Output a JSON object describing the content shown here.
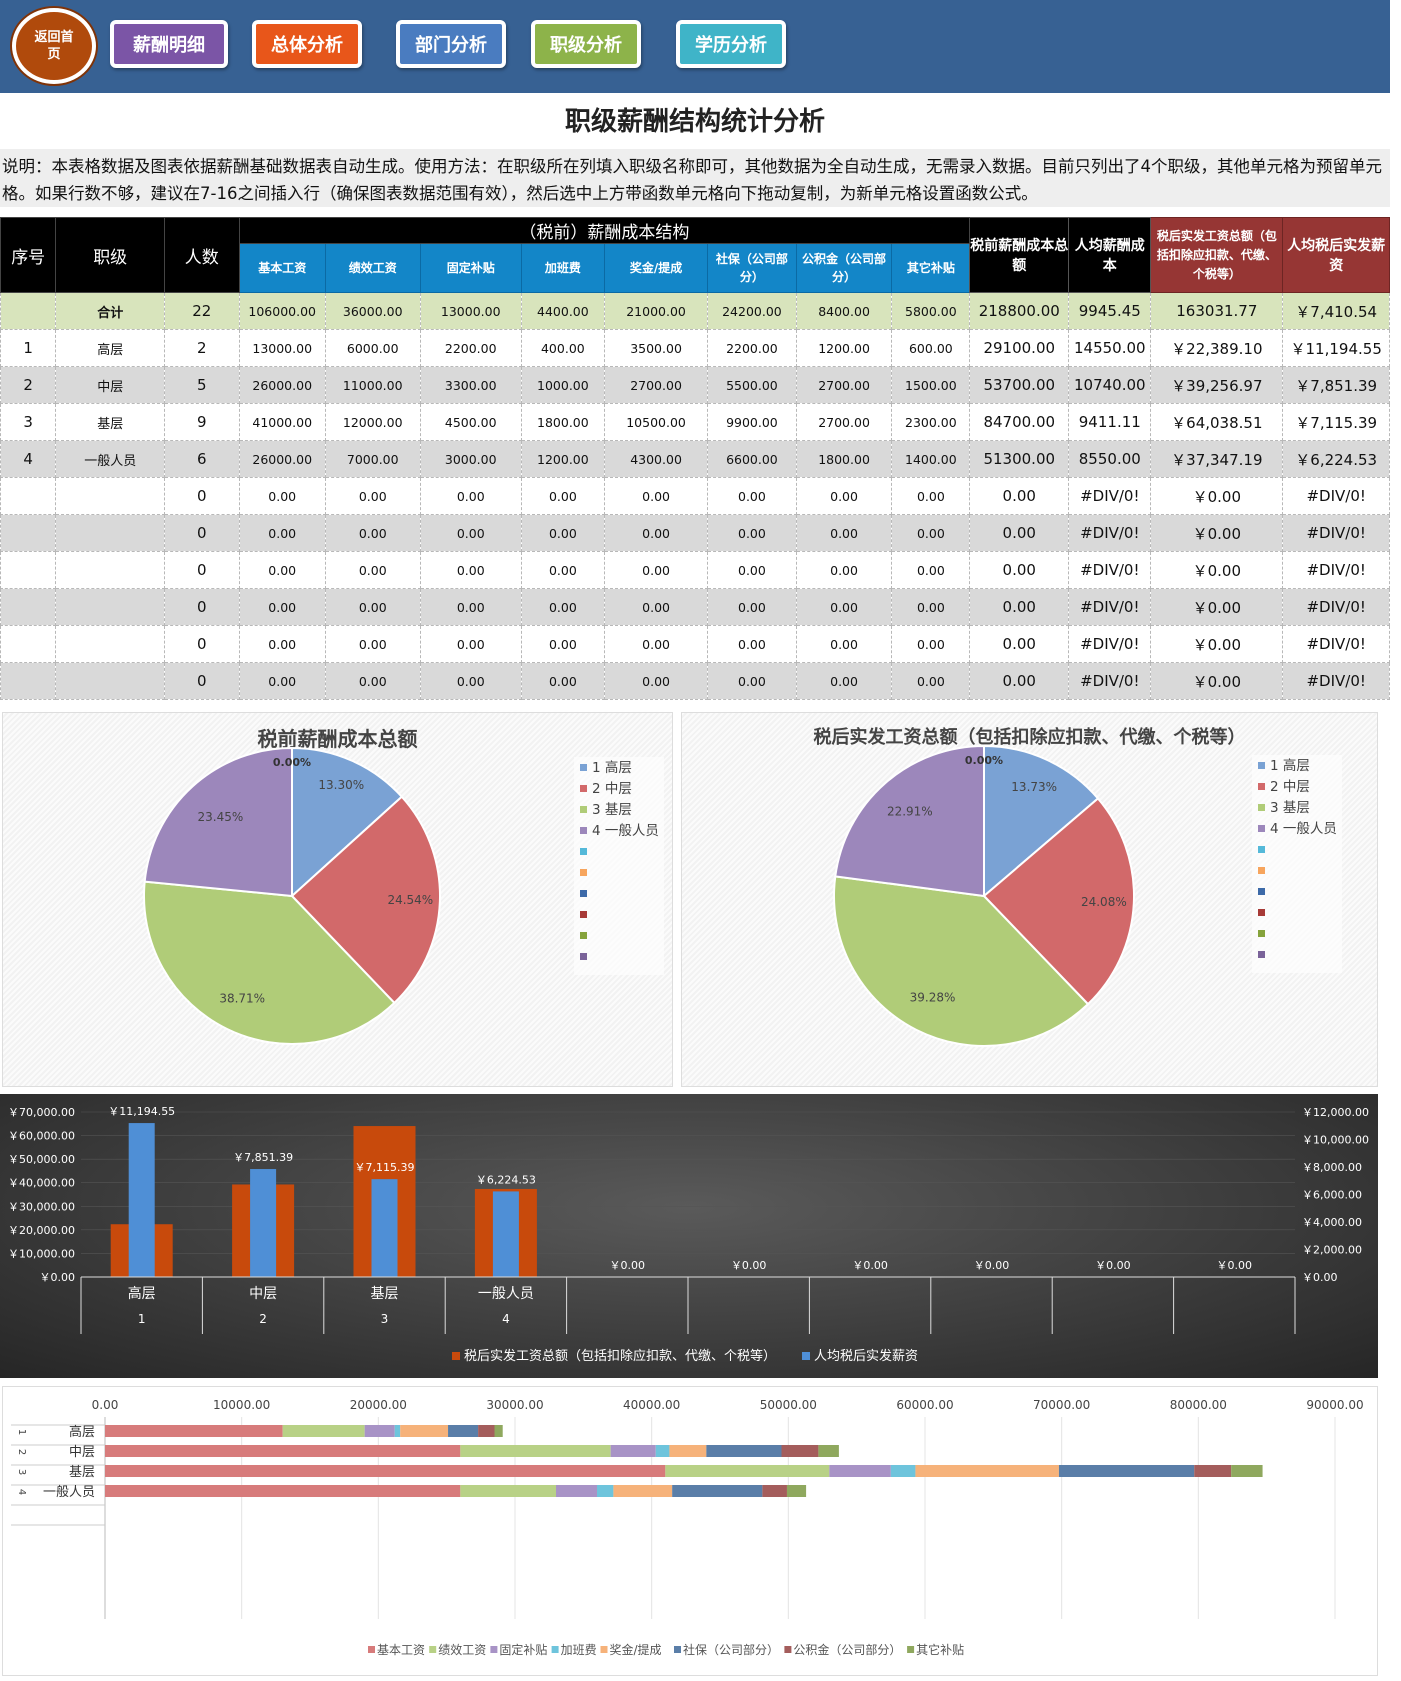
{
  "nav": {
    "home": "返回首页",
    "buttons": [
      "薪酬明细",
      "总体分析",
      "部门分析",
      "职级分析",
      "学历分析"
    ],
    "colors": [
      "#7b55a6",
      "#e8561a",
      "#4a7cc0",
      "#8db34a",
      "#3fb4c8"
    ]
  },
  "title": "职级薪酬结构统计分析",
  "description": "说明：本表格数据及图表依据薪酬基础数据表自动生成。使用方法：在职级所在列填入职级名称即可，其他数据为全自动生成，无需录入数据。目前只列出了4个职级，其他单元格为预留单元格。如果行数不够，建议在7-16之间插入行（确保图表数据范围有效），然后选中上方带函数单元格向下拖动复制，为新单元格设置函数公式。",
  "table": {
    "group_header": "（税前）薪酬成本结构",
    "headers": {
      "seq": "序号",
      "level": "职级",
      "count": "人数",
      "pre_total": "税前薪酬成本总额",
      "avg_cost": "人均薪酬成本",
      "after_total": "税后实发工资总额（包括扣除应扣款、代缴、个税等）",
      "avg_after": "人均税后实发薪资"
    },
    "sub_headers": [
      "基本工资",
      "绩效工资",
      "固定补贴",
      "加班费",
      "奖金/提成",
      "社保（公司部分）",
      "公积金（公司部分）",
      "其它补贴"
    ],
    "sum_row": {
      "label": "合计",
      "count": "22",
      "items": [
        "106000.00",
        "36000.00",
        "13000.00",
        "4400.00",
        "21000.00",
        "24200.00",
        "8400.00",
        "5800.00"
      ],
      "pre_total": "218800.00",
      "avg_cost": "9945.45",
      "after_total": "163031.77",
      "avg_after": "￥7,410.54"
    },
    "rows": [
      {
        "seq": "1",
        "level": "高层",
        "count": "2",
        "items": [
          "13000.00",
          "6000.00",
          "2200.00",
          "400.00",
          "3500.00",
          "2200.00",
          "1200.00",
          "600.00"
        ],
        "pre_total": "29100.00",
        "avg_cost": "14550.00",
        "after_total": "￥22,389.10",
        "avg_after": "￥11,194.55"
      },
      {
        "seq": "2",
        "level": "中层",
        "count": "5",
        "items": [
          "26000.00",
          "11000.00",
          "3300.00",
          "1000.00",
          "2700.00",
          "5500.00",
          "2700.00",
          "1500.00"
        ],
        "pre_total": "53700.00",
        "avg_cost": "10740.00",
        "after_total": "￥39,256.97",
        "avg_after": "￥7,851.39"
      },
      {
        "seq": "3",
        "level": "基层",
        "count": "9",
        "items": [
          "41000.00",
          "12000.00",
          "4500.00",
          "1800.00",
          "10500.00",
          "9900.00",
          "2700.00",
          "2300.00"
        ],
        "pre_total": "84700.00",
        "avg_cost": "9411.11",
        "after_total": "￥64,038.51",
        "avg_after": "￥7,115.39"
      },
      {
        "seq": "4",
        "level": "一般人员",
        "count": "6",
        "items": [
          "26000.00",
          "7000.00",
          "3000.00",
          "1200.00",
          "4300.00",
          "6600.00",
          "1800.00",
          "1400.00"
        ],
        "pre_total": "51300.00",
        "avg_cost": "8550.00",
        "after_total": "￥37,347.19",
        "avg_after": "￥6,224.53"
      },
      {
        "seq": "",
        "level": "",
        "count": "0",
        "items": [
          "0.00",
          "0.00",
          "0.00",
          "0.00",
          "0.00",
          "0.00",
          "0.00",
          "0.00"
        ],
        "pre_total": "0.00",
        "avg_cost": "#DIV/0!",
        "after_total": "￥0.00",
        "avg_after": "#DIV/0!"
      },
      {
        "seq": "",
        "level": "",
        "count": "0",
        "items": [
          "0.00",
          "0.00",
          "0.00",
          "0.00",
          "0.00",
          "0.00",
          "0.00",
          "0.00"
        ],
        "pre_total": "0.00",
        "avg_cost": "#DIV/0!",
        "after_total": "￥0.00",
        "avg_after": "#DIV/0!"
      },
      {
        "seq": "",
        "level": "",
        "count": "0",
        "items": [
          "0.00",
          "0.00",
          "0.00",
          "0.00",
          "0.00",
          "0.00",
          "0.00",
          "0.00"
        ],
        "pre_total": "0.00",
        "avg_cost": "#DIV/0!",
        "after_total": "￥0.00",
        "avg_after": "#DIV/0!"
      },
      {
        "seq": "",
        "level": "",
        "count": "0",
        "items": [
          "0.00",
          "0.00",
          "0.00",
          "0.00",
          "0.00",
          "0.00",
          "0.00",
          "0.00"
        ],
        "pre_total": "0.00",
        "avg_cost": "#DIV/0!",
        "after_total": "￥0.00",
        "avg_after": "#DIV/0!"
      },
      {
        "seq": "",
        "level": "",
        "count": "0",
        "items": [
          "0.00",
          "0.00",
          "0.00",
          "0.00",
          "0.00",
          "0.00",
          "0.00",
          "0.00"
        ],
        "pre_total": "0.00",
        "avg_cost": "#DIV/0!",
        "after_total": "￥0.00",
        "avg_after": "#DIV/0!"
      },
      {
        "seq": "",
        "level": "",
        "count": "0",
        "items": [
          "0.00",
          "0.00",
          "0.00",
          "0.00",
          "0.00",
          "0.00",
          "0.00",
          "0.00"
        ],
        "pre_total": "0.00",
        "avg_cost": "#DIV/0!",
        "after_total": "￥0.00",
        "avg_after": "#DIV/0!"
      }
    ]
  },
  "chart_data": [
    {
      "type": "pie",
      "title": "税前薪酬成本总额",
      "categories": [
        "1 高层",
        "2 中层",
        "3 基层",
        "4 一般人员"
      ],
      "values": [
        29100,
        53700,
        84700,
        51300
      ],
      "labels": [
        "13.30%",
        "24.54%",
        "38.71%",
        "23.45%"
      ],
      "zero_label": "0.00%",
      "colors": [
        "#7aa2d4",
        "#d2696a",
        "#b0cc78",
        "#9c87bb"
      ],
      "legend_extra_colors": [
        "#55b9d9",
        "#f7a55d",
        "#3d6aa8",
        "#a73a37",
        "#86a33c",
        "#7a6399"
      ]
    },
    {
      "type": "pie",
      "title": "税后实发工资总额（包括扣除应扣款、代缴、个税等）",
      "categories": [
        "1 高层",
        "2 中层",
        "3 基层",
        "4 一般人员"
      ],
      "values": [
        22389.1,
        39256.97,
        64038.51,
        37347.19
      ],
      "labels": [
        "13.73%",
        "24.08%",
        "39.28%",
        "22.91%"
      ],
      "zero_label": "0.00%",
      "colors": [
        "#7aa2d4",
        "#d2696a",
        "#b0cc78",
        "#9c87bb"
      ],
      "legend_extra_colors": [
        "#55b9d9",
        "#f7a55d",
        "#3d6aa8",
        "#a73a37",
        "#86a33c",
        "#7a6399"
      ]
    },
    {
      "type": "bar",
      "title": "",
      "categories": [
        "高层",
        "中层",
        "基层",
        "一般人员",
        "",
        "",
        "",
        "",
        "",
        ""
      ],
      "category_index": [
        "1",
        "2",
        "3",
        "4",
        "",
        "",
        "",
        "",
        "",
        ""
      ],
      "series": [
        {
          "name": "税后实发工资总额（包括扣除应扣款、代缴、个税等）",
          "values": [
            22389.1,
            39256.97,
            64038.51,
            37347.19,
            0,
            0,
            0,
            0,
            0,
            0
          ],
          "axis": "left",
          "color": "#c84a0c"
        },
        {
          "name": "人均税后实发薪资",
          "values": [
            11194.55,
            7851.39,
            7115.39,
            6224.53,
            0,
            0,
            0,
            0,
            0,
            0
          ],
          "axis": "right",
          "color": "#4f8fd6"
        }
      ],
      "data_labels": [
        "￥11,194.55",
        "￥7,851.39",
        "￥7,115.39",
        "￥6,224.53",
        "￥0.00",
        "￥0.00",
        "￥0.00",
        "￥0.00",
        "￥0.00",
        "￥0.00"
      ],
      "y_left": {
        "ticks": [
          "￥0.00",
          "￥10,000.00",
          "￥20,000.00",
          "￥30,000.00",
          "￥40,000.00",
          "￥50,000.00",
          "￥60,000.00",
          "￥70,000.00"
        ],
        "range": [
          0,
          70000
        ]
      },
      "y_right": {
        "ticks": [
          "￥0.00",
          "￥2,000.00",
          "￥4,000.00",
          "￥6,000.00",
          "￥8,000.00",
          "￥10,000.00",
          "￥12,000.00"
        ],
        "range": [
          0,
          12000
        ]
      }
    },
    {
      "type": "bar",
      "orientation": "horizontal",
      "stacked": true,
      "categories": [
        "高层",
        "中层",
        "基层",
        "一般人员"
      ],
      "category_index": [
        "1",
        "2",
        "3",
        "4"
      ],
      "x_ticks": [
        "0.00",
        "10000.00",
        "20000.00",
        "30000.00",
        "40000.00",
        "50000.00",
        "60000.00",
        "70000.00",
        "80000.00",
        "90000.00"
      ],
      "xlim": [
        0,
        90000
      ],
      "series": [
        {
          "name": "基本工资",
          "values": [
            13000,
            26000,
            41000,
            26000
          ],
          "color": "#d77b7b"
        },
        {
          "name": "绩效工资",
          "values": [
            6000,
            11000,
            12000,
            7000
          ],
          "color": "#b8d186"
        },
        {
          "name": "固定补贴",
          "values": [
            2200,
            3300,
            4500,
            3000
          ],
          "color": "#a893c6"
        },
        {
          "name": "加班费",
          "values": [
            400,
            1000,
            1800,
            1200
          ],
          "color": "#6ec4dc"
        },
        {
          "name": "奖金/提成",
          "values": [
            3500,
            2700,
            10500,
            4300
          ],
          "color": "#f6b27a"
        },
        {
          "name": "社保（公司部分）",
          "values": [
            2200,
            5500,
            9900,
            6600
          ],
          "color": "#5a7ea8"
        },
        {
          "name": "公积金（公司部分）",
          "values": [
            1200,
            2700,
            2700,
            1800
          ],
          "color": "#a45d5c"
        },
        {
          "name": "其它补贴",
          "values": [
            600,
            1500,
            2300,
            1400
          ],
          "color": "#8fa85e"
        }
      ]
    }
  ]
}
